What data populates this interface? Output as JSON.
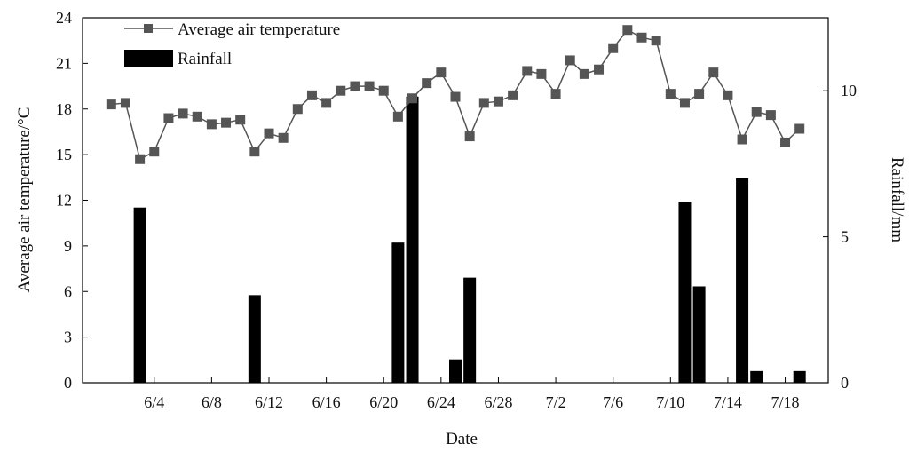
{
  "chart_data": {
    "type": "bar+line",
    "x_axis": {
      "label": "Date",
      "tick_labels": [
        "6/4",
        "6/8",
        "6/12",
        "6/16",
        "6/20",
        "6/24",
        "6/28",
        "7/2",
        "7/6",
        "7/10",
        "7/14",
        "7/18"
      ],
      "tick_days": [
        4,
        8,
        12,
        16,
        20,
        24,
        28,
        32,
        36,
        40,
        44,
        48
      ],
      "day_range": [
        -1,
        51
      ]
    },
    "y_left": {
      "label": "Average air temperature/°C",
      "range": [
        0,
        24
      ],
      "ticks": [
        0,
        3,
        6,
        9,
        12,
        15,
        18,
        21,
        24
      ]
    },
    "y_right": {
      "label": "Rainfall/mm",
      "range": [
        0,
        12.5
      ],
      "ticks": [
        0,
        5,
        10
      ]
    },
    "legend": {
      "position": "top-left"
    },
    "series": [
      {
        "name": "Average air temperature",
        "type": "line",
        "marker": "square",
        "color": "#555555",
        "dates": [
          "6/1",
          "6/2",
          "6/3",
          "6/4",
          "6/5",
          "6/6",
          "6/7",
          "6/8",
          "6/9",
          "6/10",
          "6/11",
          "6/12",
          "6/13",
          "6/14",
          "6/15",
          "6/16",
          "6/17",
          "6/18",
          "6/19",
          "6/20",
          "6/21",
          "6/22",
          "6/23",
          "6/24",
          "6/25",
          "6/26",
          "6/27",
          "6/28",
          "6/29",
          "6/30",
          "7/1",
          "7/2",
          "7/3",
          "7/4",
          "7/5",
          "7/6",
          "7/7",
          "7/8",
          "7/9",
          "7/10",
          "7/11",
          "7/12",
          "7/13",
          "7/14",
          "7/15",
          "7/16",
          "7/17",
          "7/18",
          "7/19"
        ],
        "values": [
          18.3,
          18.4,
          14.7,
          15.2,
          17.4,
          17.7,
          17.5,
          17.0,
          17.1,
          17.3,
          15.2,
          16.4,
          16.1,
          18.0,
          18.9,
          18.4,
          19.2,
          19.5,
          19.5,
          19.2,
          17.5,
          18.7,
          19.7,
          20.4,
          18.8,
          16.2,
          18.4,
          18.5,
          18.9,
          20.5,
          20.3,
          19.0,
          21.2,
          20.3,
          20.6,
          22.0,
          23.2,
          22.7,
          22.5,
          19.0,
          18.4,
          19.0,
          20.4,
          18.9,
          16.0,
          17.8,
          17.6,
          15.8,
          16.7
        ]
      },
      {
        "name": "Rainfall",
        "type": "bar",
        "color": "#000000",
        "dates": [
          "6/3",
          "6/11",
          "6/21",
          "6/22",
          "6/25",
          "6/26",
          "7/11",
          "7/12",
          "7/15",
          "7/16",
          "7/19"
        ],
        "values": [
          6.0,
          3.0,
          4.8,
          9.8,
          0.8,
          3.6,
          6.2,
          3.3,
          7.0,
          0.4,
          0.4
        ]
      }
    ]
  }
}
